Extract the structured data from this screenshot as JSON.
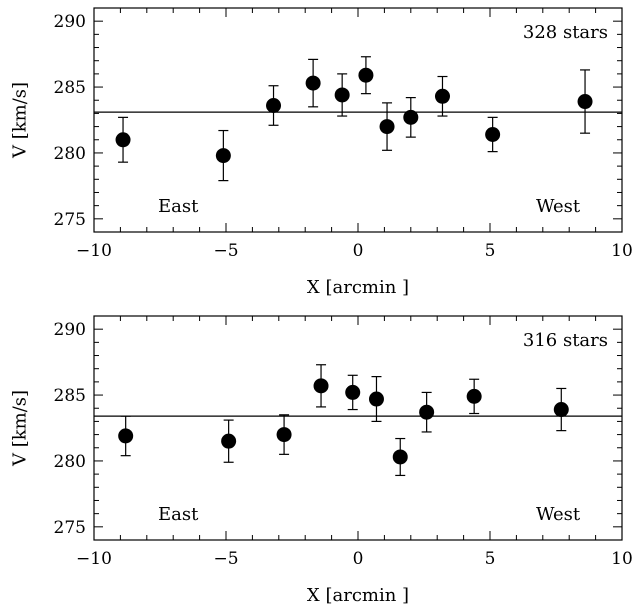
{
  "chart_data": [
    {
      "type": "scatter",
      "xlabel": "X [arcmin ]",
      "ylabel": "V [km/s]",
      "xlim": [
        -10,
        10
      ],
      "ylim": [
        274,
        291
      ],
      "xticks": [
        -10,
        -5,
        0,
        5,
        10
      ],
      "xtick_labels": [
        "−10",
        "−5",
        "0",
        "5",
        "10"
      ],
      "yticks": [
        275,
        280,
        285,
        290
      ],
      "ytick_labels": [
        "275",
        "280",
        "285",
        "290"
      ],
      "annotations": {
        "count": "328 stars",
        "left": "East",
        "right": "West"
      },
      "mean_line": 283.1,
      "points": [
        {
          "x": -8.9,
          "y": 281.0,
          "err": 1.7
        },
        {
          "x": -5.1,
          "y": 279.8,
          "err": 1.9
        },
        {
          "x": -3.2,
          "y": 283.6,
          "err": 1.5
        },
        {
          "x": -1.7,
          "y": 285.3,
          "err": 1.8
        },
        {
          "x": -0.6,
          "y": 284.4,
          "err": 1.6
        },
        {
          "x": 0.3,
          "y": 285.9,
          "err": 1.4
        },
        {
          "x": 1.1,
          "y": 282.0,
          "err": 1.8
        },
        {
          "x": 2.0,
          "y": 282.7,
          "err": 1.5
        },
        {
          "x": 3.2,
          "y": 284.3,
          "err": 1.5
        },
        {
          "x": 5.1,
          "y": 281.4,
          "err": 1.3
        },
        {
          "x": 8.6,
          "y": 283.9,
          "err": 2.4
        }
      ]
    },
    {
      "type": "scatter",
      "xlabel": "X [arcmin ]",
      "ylabel": "V [km/s]",
      "xlim": [
        -10,
        10
      ],
      "ylim": [
        274,
        291
      ],
      "xticks": [
        -10,
        -5,
        0,
        5,
        10
      ],
      "xtick_labels": [
        "−10",
        "−5",
        "0",
        "5",
        "10"
      ],
      "yticks": [
        275,
        280,
        285,
        290
      ],
      "ytick_labels": [
        "275",
        "280",
        "285",
        "290"
      ],
      "annotations": {
        "count": "316 stars",
        "left": "East",
        "right": "West"
      },
      "mean_line": 283.4,
      "points": [
        {
          "x": -8.8,
          "y": 281.9,
          "err": 1.5
        },
        {
          "x": -4.9,
          "y": 281.5,
          "err": 1.6
        },
        {
          "x": -2.8,
          "y": 282.0,
          "err": 1.5
        },
        {
          "x": -1.4,
          "y": 285.7,
          "err": 1.6
        },
        {
          "x": -0.2,
          "y": 285.2,
          "err": 1.3
        },
        {
          "x": 0.7,
          "y": 284.7,
          "err": 1.7
        },
        {
          "x": 1.6,
          "y": 280.3,
          "err": 1.4
        },
        {
          "x": 2.6,
          "y": 283.7,
          "err": 1.5
        },
        {
          "x": 4.4,
          "y": 284.9,
          "err": 1.3
        },
        {
          "x": 7.7,
          "y": 283.9,
          "err": 1.6
        }
      ]
    }
  ]
}
